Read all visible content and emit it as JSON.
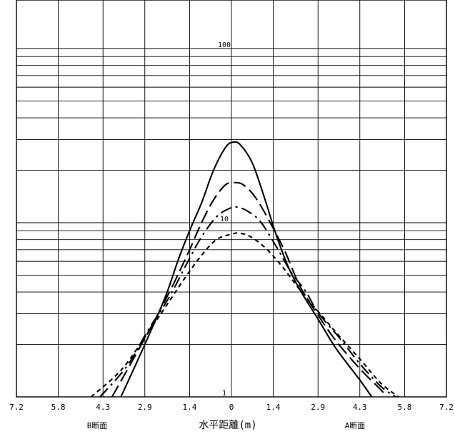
{
  "chart_data": {
    "type": "line",
    "title": "",
    "xlabel": "水平距離(m)",
    "ylabel": "",
    "y_scale": "log",
    "ylim": [
      1,
      400
    ],
    "y_tick_labels": [
      {
        "value": 100,
        "label": "100"
      },
      {
        "value": 10,
        "label": "10"
      },
      {
        "value": 1,
        "label": "1"
      }
    ],
    "xlim": [
      -7.2,
      7.2
    ],
    "x_tick_labels": [
      {
        "value": -7.2,
        "label": "7.2"
      },
      {
        "value": -5.8,
        "label": "5.8"
      },
      {
        "value": -4.3,
        "label": "4.3"
      },
      {
        "value": -2.9,
        "label": "2.9"
      },
      {
        "value": -1.4,
        "label": "1.4"
      },
      {
        "value": 0,
        "label": "0"
      },
      {
        "value": 1.4,
        "label": "1.4"
      },
      {
        "value": 2.9,
        "label": "2.9"
      },
      {
        "value": 4.3,
        "label": "4.3"
      },
      {
        "value": 5.8,
        "label": "5.8"
      },
      {
        "value": 7.2,
        "label": "7.2"
      }
    ],
    "section_labels": {
      "left": "B断面",
      "right": "A断面"
    },
    "grid": true,
    "series": [
      {
        "style": "solid",
        "points": [
          [
            -3.7,
            1
          ],
          [
            -2.9,
            2
          ],
          [
            -2.2,
            3.8
          ],
          [
            -1.8,
            6
          ],
          [
            -1.4,
            9
          ],
          [
            -1.0,
            13
          ],
          [
            -0.6,
            20
          ],
          [
            -0.2,
            27
          ],
          [
            0.05,
            29
          ],
          [
            0.3,
            28
          ],
          [
            0.7,
            22
          ],
          [
            1.1,
            14
          ],
          [
            1.5,
            8.5
          ],
          [
            1.9,
            5.6
          ],
          [
            2.3,
            4.1
          ],
          [
            2.9,
            2.8
          ],
          [
            3.5,
            1.9
          ],
          [
            4.3,
            1.25
          ],
          [
            4.7,
            1
          ]
        ]
      },
      {
        "style": "long-dash",
        "points": [
          [
            -4.0,
            1
          ],
          [
            -3.2,
            1.75
          ],
          [
            -2.5,
            2.9
          ],
          [
            -1.9,
            4.6
          ],
          [
            -1.4,
            7
          ],
          [
            -1.0,
            10
          ],
          [
            -0.6,
            13.5
          ],
          [
            -0.2,
            16.5
          ],
          [
            0.1,
            17
          ],
          [
            0.4,
            16.5
          ],
          [
            0.8,
            14
          ],
          [
            1.3,
            10
          ],
          [
            1.8,
            6.8
          ],
          [
            2.3,
            4.3
          ],
          [
            2.9,
            2.95
          ],
          [
            3.5,
            2.1
          ],
          [
            4.3,
            1.45
          ],
          [
            5.0,
            1.1
          ],
          [
            5.2,
            1
          ]
        ]
      },
      {
        "style": "dash-dot",
        "points": [
          [
            -4.4,
            1
          ],
          [
            -3.5,
            1.5
          ],
          [
            -2.8,
            2.4
          ],
          [
            -2.1,
            3.7
          ],
          [
            -1.5,
            5.8
          ],
          [
            -1.0,
            8.3
          ],
          [
            -0.5,
            10.8
          ],
          [
            -0.1,
            12
          ],
          [
            0.2,
            12.3
          ],
          [
            0.6,
            11.5
          ],
          [
            1.0,
            10
          ],
          [
            1.5,
            7.3
          ],
          [
            2.0,
            5.2
          ],
          [
            2.5,
            4
          ],
          [
            2.9,
            3.05
          ],
          [
            3.6,
            2.2
          ],
          [
            4.3,
            1.55
          ],
          [
            5.0,
            1.15
          ],
          [
            5.5,
            1
          ]
        ]
      },
      {
        "style": "short-dash",
        "points": [
          [
            -4.7,
            1
          ],
          [
            -3.7,
            1.42
          ],
          [
            -2.9,
            2.2
          ],
          [
            -2.2,
            3.3
          ],
          [
            -1.6,
            4.7
          ],
          [
            -1.0,
            6.5
          ],
          [
            -0.5,
            8
          ],
          [
            0.0,
            8.6
          ],
          [
            0.3,
            8.7
          ],
          [
            0.7,
            8.2
          ],
          [
            1.2,
            7
          ],
          [
            1.7,
            5.6
          ],
          [
            2.3,
            4.1
          ],
          [
            2.9,
            3.1
          ],
          [
            3.5,
            2.35
          ],
          [
            4.3,
            1.65
          ],
          [
            5.0,
            1.2
          ],
          [
            5.6,
            1
          ]
        ]
      }
    ]
  }
}
